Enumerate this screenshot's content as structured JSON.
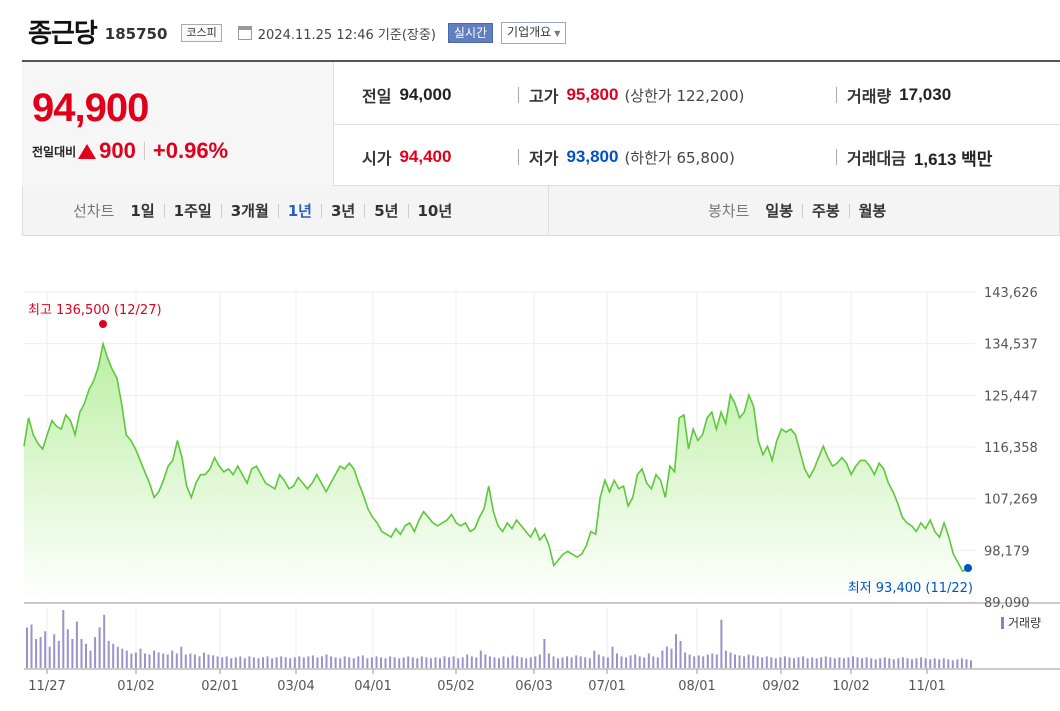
{
  "header": {
    "name": "종근당",
    "code": "185750",
    "market": "코스피",
    "timestamp": "2024.11.25 12:46 기준(장중)",
    "realtime_label": "실시간",
    "company_label": "기업개요"
  },
  "quote": {
    "price": "94,900",
    "change_label": "전일대비",
    "change_amount": "900",
    "change_percent": "+0.96%",
    "prev_close_label": "전일",
    "prev_close": "94,000",
    "high_label": "고가",
    "high": "95,800",
    "upper_limit": "(상한가 122,200)",
    "volume_label": "거래량",
    "volume": "17,030",
    "open_label": "시가",
    "open": "94,400",
    "low_label": "저가",
    "low": "93,800",
    "lower_limit": "(하한가 65,800)",
    "amount_label": "거래대금",
    "amount": "1,613 백만"
  },
  "periods": {
    "line_title": "선차트",
    "line_items": [
      "1일",
      "1주일",
      "3개월",
      "1년",
      "3년",
      "5년",
      "10년"
    ],
    "active": "1년",
    "candle_title": "봉차트",
    "candle_items": [
      "일봉",
      "주봉",
      "월봉"
    ]
  },
  "colors": {
    "up": "#e0001b",
    "down": "#0052cc",
    "line": "#5cc83a",
    "fill_top": "#b8ee9e",
    "volume": "#8a7fc2"
  },
  "chart_data": {
    "type": "area",
    "y_ticks": [
      "143,626",
      "134,537",
      "125,447",
      "116,358",
      "107,269",
      "98,179",
      "89,090"
    ],
    "ylim": [
      89090,
      143626
    ],
    "x_ticks": [
      "11/27",
      "01/02",
      "02/01",
      "03/04",
      "04/01",
      "05/02",
      "06/03",
      "07/01",
      "08/01",
      "09/02",
      "10/02",
      "11/01"
    ],
    "max_annotation": "최고 136,500 (12/27)",
    "min_annotation": "최저 93,400 (11/22)",
    "volume_legend": "거래량",
    "series": [
      {
        "name": "price",
        "values": [
          116500,
          121500,
          118500,
          117000,
          116000,
          118500,
          121000,
          120000,
          119500,
          122000,
          121000,
          118500,
          122500,
          124000,
          126500,
          128000,
          130500,
          134500,
          132000,
          130000,
          128500,
          124000,
          118500,
          117500,
          116000,
          114000,
          112000,
          110000,
          107500,
          108500,
          110500,
          113000,
          114000,
          117500,
          114500,
          109500,
          107500,
          110000,
          111500,
          111500,
          112500,
          114500,
          113000,
          112000,
          112500,
          111500,
          113000,
          111500,
          110000,
          112500,
          113000,
          111500,
          110000,
          109500,
          109000,
          111500,
          110500,
          109000,
          109500,
          111000,
          110000,
          109000,
          110000,
          111500,
          110000,
          108500,
          110000,
          111500,
          113000,
          112500,
          113500,
          112500,
          110000,
          108000,
          105500,
          104000,
          103000,
          101500,
          101000,
          100500,
          102000,
          101000,
          102500,
          103000,
          101500,
          103500,
          105000,
          104000,
          103000,
          102500,
          103000,
          103500,
          104500,
          103000,
          102500,
          103000,
          101500,
          102000,
          104000,
          105500,
          109500,
          105000,
          102500,
          101500,
          103000,
          102000,
          103500,
          102500,
          101500,
          100500,
          102000,
          100000,
          101000,
          99000,
          95500,
          96500,
          97500,
          98000,
          97500,
          97000,
          97500,
          99000,
          101500,
          101000,
          107500,
          110500,
          108500,
          110500,
          109000,
          109500,
          106000,
          107500,
          111500,
          112500,
          110000,
          109000,
          111500,
          110500,
          107500,
          113000,
          112000,
          121500,
          122000,
          116000,
          119500,
          117500,
          118500,
          121500,
          122500,
          119500,
          122500,
          120500,
          125500,
          124000,
          121500,
          122500,
          125500,
          123500,
          117500,
          115000,
          116500,
          114000,
          117500,
          119500,
          119000,
          119500,
          118500,
          115500,
          112500,
          111000,
          112500,
          114500,
          116500,
          114500,
          113000,
          113500,
          114500,
          113500,
          111500,
          113000,
          114000,
          114000,
          113000,
          111500,
          113500,
          112500,
          110000,
          108500,
          106500,
          104000,
          103000,
          102500,
          101500,
          103000,
          102000,
          103500,
          101500,
          100500,
          103000,
          100500,
          97500,
          96000,
          94500,
          95000,
          94900
        ]
      }
    ],
    "volume_values": [
      42,
      45,
      30,
      32,
      38,
      22,
      35,
      28,
      60,
      40,
      30,
      48,
      30,
      25,
      18,
      32,
      42,
      55,
      28,
      25,
      22,
      20,
      18,
      15,
      16,
      20,
      15,
      14,
      18,
      16,
      15,
      14,
      18,
      15,
      22,
      14,
      15,
      14,
      12,
      16,
      14,
      13,
      12,
      11,
      12,
      10,
      11,
      12,
      10,
      12,
      11,
      10,
      11,
      12,
      10,
      11,
      12,
      11,
      10,
      11,
      12,
      11,
      12,
      13,
      11,
      12,
      14,
      12,
      11,
      10,
      12,
      11,
      10,
      12,
      13,
      10,
      11,
      12,
      11,
      10,
      12,
      11,
      10,
      11,
      12,
      11,
      10,
      12,
      11,
      10,
      11,
      10,
      12,
      11,
      12,
      10,
      11,
      14,
      12,
      11,
      18,
      14,
      12,
      11,
      10,
      12,
      11,
      13,
      12,
      11,
      10,
      11,
      12,
      14,
      30,
      15,
      12,
      10,
      11,
      12,
      11,
      13,
      12,
      11,
      10,
      18,
      14,
      12,
      11,
      22,
      15,
      12,
      11,
      13,
      14,
      12,
      11,
      15,
      12,
      11,
      18,
      22,
      20,
      35,
      28,
      16,
      14,
      12,
      13,
      12,
      14,
      15,
      14,
      50,
      18,
      16,
      14,
      13,
      12,
      14,
      13,
      12,
      11,
      12,
      11,
      10,
      11,
      12,
      11,
      10,
      11,
      12,
      10,
      11,
      10,
      11,
      12,
      11,
      10,
      11,
      10,
      11,
      12,
      11,
      10,
      11,
      10,
      9,
      10,
      11,
      10,
      9,
      10,
      11,
      10,
      9,
      10,
      11,
      10,
      9,
      10,
      9,
      10,
      9,
      8,
      9,
      10,
      9,
      8
    ]
  }
}
